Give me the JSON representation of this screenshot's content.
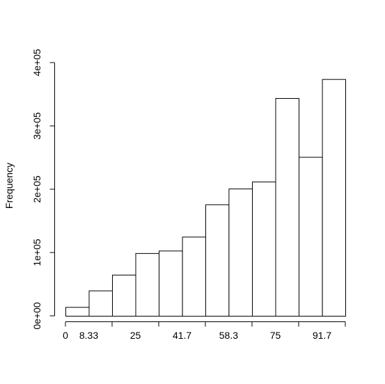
{
  "chart_data": {
    "type": "bar",
    "title": "",
    "xlabel": "",
    "ylabel": "Frequency",
    "bin_edges": [
      0,
      8.33,
      16.67,
      25,
      33.33,
      41.7,
      50,
      58.3,
      66.67,
      75,
      83.33,
      91.7,
      100
    ],
    "values": [
      14000,
      40000,
      65000,
      99000,
      103000,
      125000,
      176000,
      201000,
      212000,
      344000,
      251000,
      374000
    ],
    "x_tick_values": [
      0,
      8.33,
      25,
      41.7,
      58.3,
      75,
      91.7
    ],
    "x_tick_labels": [
      "0",
      "8.33",
      "25",
      "41.7",
      "58.3",
      "75",
      "91.7"
    ],
    "y_tick_values": [
      0,
      100000,
      200000,
      300000,
      400000
    ],
    "y_tick_labels": [
      "0e+00",
      "1e+05",
      "2e+05",
      "3e+05",
      "4e+05"
    ],
    "ylim": [
      0,
      400000
    ],
    "xlim": [
      0,
      100
    ],
    "grid": false
  }
}
